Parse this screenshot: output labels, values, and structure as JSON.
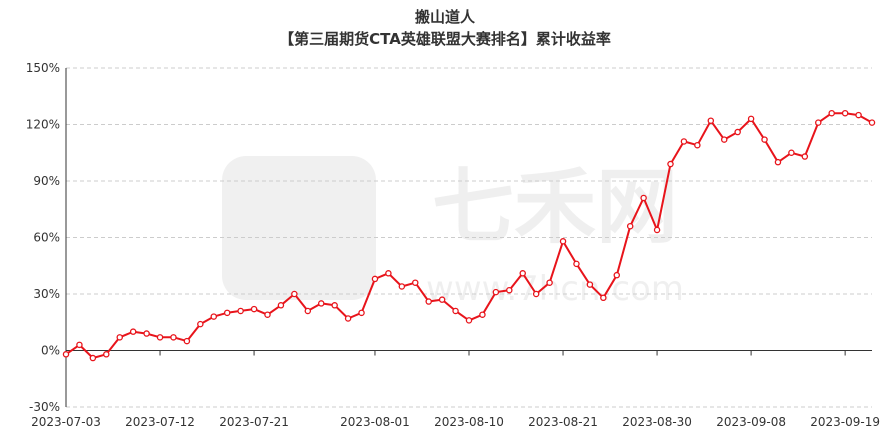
{
  "chart_title": "搬山道人",
  "chart_subtitle": "【第三届期货CTA英雄联盟大赛排名】累计收益率",
  "watermark": {
    "brand": "七禾网",
    "site": "www.7hcn.com"
  },
  "colors": {
    "line": "#e8141b",
    "grid": "#cccccc",
    "axis": "#333333",
    "label": "#333333"
  },
  "chart_data": {
    "type": "line",
    "title": "搬山道人",
    "subtitle": "【第三届期货CTA英雄联盟大赛排名】累计收益率",
    "xlabel": "",
    "ylabel": "",
    "y_unit": "%",
    "ylim": [
      -30,
      150
    ],
    "y_ticks": [
      -30,
      0,
      30,
      60,
      90,
      120,
      150
    ],
    "y_tick_labels": [
      "-30%",
      "0%",
      "30%",
      "60%",
      "90%",
      "120%",
      "150%"
    ],
    "x_tick_labels": [
      "2023-07-03",
      "2023-07-12",
      "2023-07-21",
      "2023-08-01",
      "2023-08-10",
      "2023-08-21",
      "2023-08-30",
      "2023-09-08",
      "2023-09-19"
    ],
    "x_tick_indices": [
      0,
      7,
      14,
      23,
      30,
      37,
      44,
      51,
      58
    ],
    "grid": true,
    "series": [
      {
        "values": [
          -2,
          3,
          -4,
          -2,
          7,
          10,
          9,
          7,
          7,
          5,
          14,
          18,
          20,
          21,
          22,
          19,
          24,
          30,
          21,
          25,
          24,
          17,
          20,
          38,
          41,
          34,
          36,
          26,
          27,
          21,
          16,
          19,
          31,
          32,
          41,
          30,
          36,
          58,
          46,
          35,
          28,
          40,
          66,
          81,
          64,
          99,
          111,
          109,
          122,
          112,
          116,
          123,
          112,
          100,
          105,
          103,
          121,
          126,
          126,
          125,
          121
        ]
      }
    ]
  }
}
